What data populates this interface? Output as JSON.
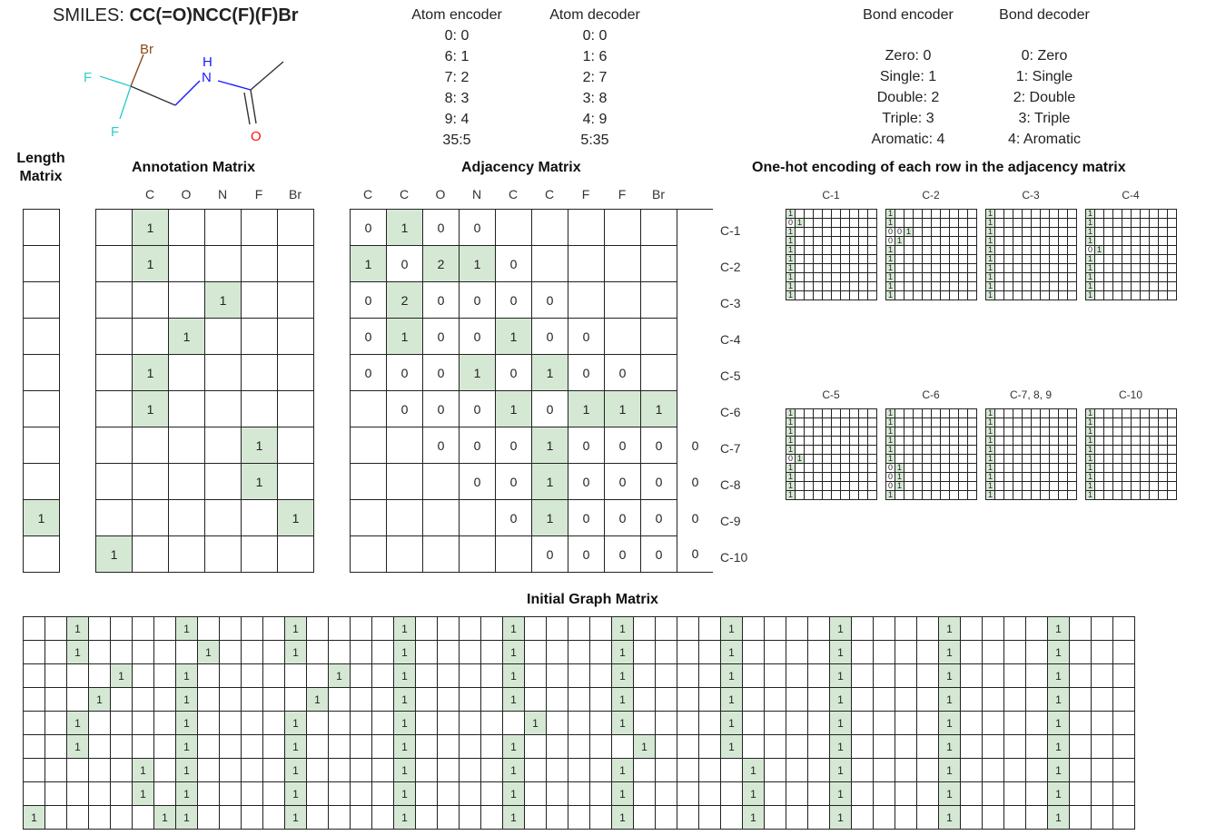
{
  "smiles": {
    "prefix": "SMILES: ",
    "value": "CC(=O)NCC(F)(F)Br"
  },
  "molecule": {
    "atoms": {
      "br": "Br",
      "f1": "F",
      "f2": "F",
      "n": "N",
      "h": "H",
      "o": "O"
    },
    "colors": {
      "br": "#8a4a1a",
      "f": "#33cccc",
      "n": "#1a1aff",
      "o": "#ff0d0d",
      "bond": "#333333"
    }
  },
  "atom_encoder": {
    "title": "Atom encoder",
    "lines": [
      "0: 0",
      "6: 1",
      "7: 2",
      "8: 3",
      "9: 4",
      "35:5"
    ]
  },
  "atom_decoder": {
    "title": "Atom decoder",
    "lines": [
      "0: 0",
      "1: 6",
      "2: 7",
      "3: 8",
      "4: 9",
      "5:35"
    ]
  },
  "bond_encoder": {
    "title": "Bond encoder",
    "lines": [
      "Zero: 0",
      "Single: 1",
      "Double: 2",
      "Triple: 3",
      "Aromatic: 4"
    ]
  },
  "bond_decoder": {
    "title": "Bond decoder",
    "lines": [
      "0: Zero",
      "1: Single",
      "2: Double",
      "3: Triple",
      "4: Aromatic"
    ]
  },
  "length_matrix": {
    "title_line1": "Length",
    "title_line2": "Matrix",
    "cells": [
      "",
      "",
      "",
      "",
      "",
      "",
      "",
      "",
      "1",
      ""
    ]
  },
  "annotation_matrix": {
    "title": "Annotation Matrix",
    "columns": [
      "C",
      "O",
      "N",
      "F",
      "Br"
    ],
    "rows": [
      [
        "1",
        "",
        "",
        "",
        ""
      ],
      [
        "1",
        "",
        "",
        "",
        ""
      ],
      [
        "",
        "",
        "1",
        "",
        ""
      ],
      [
        "",
        "1",
        "",
        "",
        ""
      ],
      [
        "1",
        "",
        "",
        "",
        ""
      ],
      [
        "1",
        "",
        "",
        "",
        ""
      ],
      [
        "",
        "",
        "",
        "1",
        ""
      ],
      [
        "",
        "",
        "",
        "1",
        ""
      ],
      [
        "",
        "",
        "",
        "",
        "1"
      ],
      [
        "",
        "",
        "",
        "",
        ""
      ]
    ],
    "extra_col": [
      "",
      "",
      "",
      "",
      "",
      "",
      "",
      "",
      "",
      "1"
    ]
  },
  "adjacency_matrix": {
    "title": "Adjacency Matrix",
    "columns": [
      "C",
      "C",
      "O",
      "N",
      "C",
      "C",
      "F",
      "F",
      "Br"
    ],
    "row_labels": [
      "C-1",
      "C-2",
      "C-3",
      "C-4",
      "C-5",
      "C-6",
      "C-7",
      "C-8",
      "C-9",
      "C-10"
    ],
    "rows": [
      [
        "0",
        "1",
        "0",
        "0",
        "",
        "",
        "",
        "",
        "",
        ""
      ],
      [
        "1",
        "0",
        "2",
        "1",
        "0",
        "",
        "",
        "",
        "",
        ""
      ],
      [
        "0",
        "2",
        "0",
        "0",
        "0",
        "0",
        "",
        "",
        "",
        ""
      ],
      [
        "0",
        "1",
        "0",
        "0",
        "1",
        "0",
        "0",
        "",
        "",
        ""
      ],
      [
        "0",
        "0",
        "0",
        "1",
        "0",
        "1",
        "0",
        "0",
        "",
        ""
      ],
      [
        "",
        "0",
        "0",
        "0",
        "1",
        "0",
        "1",
        "1",
        "1",
        ""
      ],
      [
        "",
        "",
        "0",
        "0",
        "0",
        "1",
        "0",
        "0",
        "0",
        "0"
      ],
      [
        "",
        "",
        "",
        "0",
        "0",
        "1",
        "0",
        "0",
        "0",
        "0"
      ],
      [
        "",
        "",
        "",
        "",
        "0",
        "1",
        "0",
        "0",
        "0",
        "0"
      ],
      [
        "",
        "",
        "",
        "",
        "",
        "0",
        "0",
        "0",
        "0",
        "0"
      ]
    ],
    "highlight": [
      [
        0,
        1,
        0,
        0,
        0,
        0,
        0,
        0,
        0,
        0
      ],
      [
        1,
        0,
        1,
        1,
        0,
        0,
        0,
        0,
        0,
        0
      ],
      [
        0,
        1,
        0,
        0,
        0,
        0,
        0,
        0,
        0,
        0
      ],
      [
        0,
        1,
        0,
        0,
        1,
        0,
        0,
        0,
        0,
        0
      ],
      [
        0,
        0,
        0,
        1,
        0,
        1,
        0,
        0,
        0,
        0
      ],
      [
        0,
        0,
        0,
        0,
        1,
        0,
        1,
        1,
        1,
        0
      ],
      [
        0,
        0,
        0,
        0,
        0,
        1,
        0,
        0,
        0,
        0
      ],
      [
        0,
        0,
        0,
        0,
        0,
        1,
        0,
        0,
        0,
        0
      ],
      [
        0,
        0,
        0,
        0,
        0,
        1,
        0,
        0,
        0,
        0
      ],
      [
        0,
        0,
        0,
        0,
        0,
        0,
        0,
        0,
        0,
        0
      ]
    ]
  },
  "onehot": {
    "title": "One-hot encoding of each row in the adjacency matrix",
    "blocks": [
      {
        "label": "C-1",
        "rows": [
          [
            "1"
          ],
          [
            "0",
            "1"
          ],
          [
            "1"
          ],
          [
            "1"
          ],
          [
            "1"
          ],
          [
            "1"
          ],
          [
            "1"
          ],
          [
            "1"
          ],
          [
            "1"
          ],
          [
            "1"
          ]
        ]
      },
      {
        "label": "C-2",
        "rows": [
          [
            "1"
          ],
          [
            "1"
          ],
          [
            "0",
            "0",
            "1"
          ],
          [
            "0",
            "1"
          ],
          [
            "1"
          ],
          [
            "1"
          ],
          [
            "1"
          ],
          [
            "1"
          ],
          [
            "1"
          ],
          [
            "1"
          ]
        ]
      },
      {
        "label": "C-3",
        "rows": [
          [
            "1"
          ],
          [
            "1"
          ],
          [
            "1"
          ],
          [
            "1"
          ],
          [
            "1"
          ],
          [
            "1"
          ],
          [
            "1"
          ],
          [
            "1"
          ],
          [
            "1"
          ],
          [
            "1"
          ]
        ]
      },
      {
        "label": "C-4",
        "rows": [
          [
            "1"
          ],
          [
            "1"
          ],
          [
            "1"
          ],
          [
            "1"
          ],
          [
            "0",
            "1"
          ],
          [
            "1"
          ],
          [
            "1"
          ],
          [
            "1"
          ],
          [
            "1"
          ],
          [
            "1"
          ]
        ]
      },
      {
        "label": "C-5",
        "rows": [
          [
            "1"
          ],
          [
            "1"
          ],
          [
            "1"
          ],
          [
            "1"
          ],
          [
            "1"
          ],
          [
            "0",
            "1"
          ],
          [
            "1"
          ],
          [
            "1"
          ],
          [
            "1"
          ],
          [
            "1"
          ]
        ]
      },
      {
        "label": "C-6",
        "rows": [
          [
            "1"
          ],
          [
            "1"
          ],
          [
            "1"
          ],
          [
            "1"
          ],
          [
            "1"
          ],
          [
            "1"
          ],
          [
            "0",
            "1"
          ],
          [
            "0",
            "1"
          ],
          [
            "0",
            "1"
          ],
          [
            "1"
          ]
        ]
      },
      {
        "label": "C-7, 8, 9",
        "rows": [
          [
            "1"
          ],
          [
            "1"
          ],
          [
            "1"
          ],
          [
            "1"
          ],
          [
            "1"
          ],
          [
            "1"
          ],
          [
            "1"
          ],
          [
            "1"
          ],
          [
            "1"
          ],
          [
            "1"
          ]
        ]
      },
      {
        "label": "C-10",
        "rows": [
          [
            "1"
          ],
          [
            "1"
          ],
          [
            "1"
          ],
          [
            "1"
          ],
          [
            "1"
          ],
          [
            "1"
          ],
          [
            "1"
          ],
          [
            "1"
          ],
          [
            "1"
          ],
          [
            "1"
          ]
        ]
      }
    ]
  },
  "initial_graph": {
    "title": "Initial Graph Matrix",
    "ones": [
      [
        2,
        7,
        12,
        17,
        22,
        27,
        32,
        37,
        42,
        47
      ],
      [
        2,
        8,
        12,
        17,
        22,
        27,
        32,
        37,
        42,
        47
      ],
      [
        4,
        7,
        14,
        17,
        22,
        27,
        32,
        37,
        42,
        47
      ],
      [
        3,
        7,
        13,
        17,
        22,
        27,
        32,
        37,
        42,
        47
      ],
      [
        2,
        7,
        12,
        17,
        23,
        27,
        32,
        37,
        42,
        47
      ],
      [
        2,
        7,
        12,
        17,
        22,
        28,
        32,
        37,
        42,
        47
      ],
      [
        5,
        7,
        12,
        17,
        22,
        27,
        33,
        37,
        42,
        47
      ],
      [
        5,
        7,
        12,
        17,
        22,
        27,
        33,
        37,
        42,
        47
      ],
      [
        0,
        6,
        7,
        12,
        17,
        22,
        27,
        33,
        37,
        42,
        47
      ]
    ]
  }
}
